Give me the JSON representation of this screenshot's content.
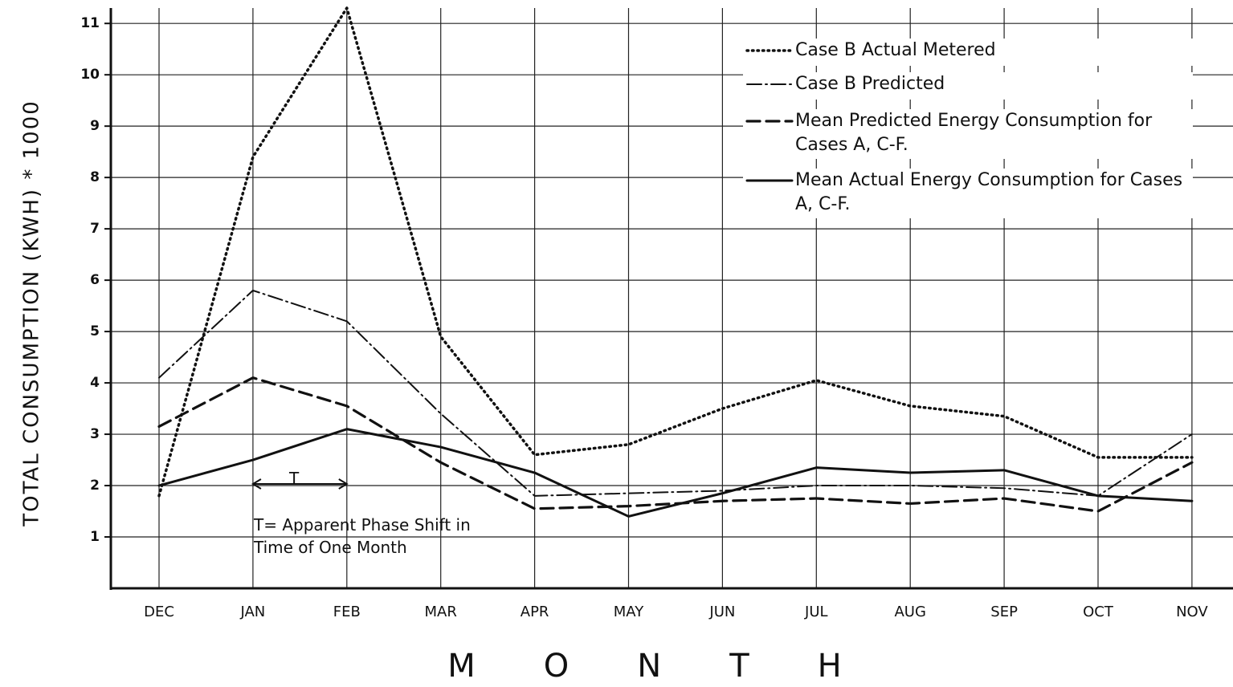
{
  "chart_data": {
    "type": "line",
    "y_label": "TOTAL CONSUMPTION (KWH) * 1000",
    "x_label": "MONTH",
    "categories": [
      "DEC",
      "JAN",
      "FEB",
      "MAR",
      "APR",
      "MAY",
      "JUN",
      "JUL",
      "AUG",
      "SEP",
      "OCT",
      "NOV"
    ],
    "series": [
      {
        "name": "Case B Actual Metered",
        "color": "#111111",
        "style": "dotted",
        "values": [
          1.8,
          8.4,
          11.3,
          4.9,
          2.6,
          2.8,
          3.5,
          4.05,
          3.55,
          3.35,
          2.55,
          2.55
        ]
      },
      {
        "name": "Case B Predicted",
        "color": "#111111",
        "style": "dash-dot",
        "values": [
          4.1,
          5.8,
          5.2,
          3.4,
          1.8,
          1.85,
          1.9,
          2.0,
          2.0,
          1.95,
          1.8,
          3.0
        ]
      },
      {
        "name": "Mean Predicted Energy Consumption for Cases A, C-F.",
        "color": "#111111",
        "style": "dashed",
        "values": [
          3.15,
          4.1,
          3.55,
          2.45,
          1.55,
          1.6,
          1.7,
          1.75,
          1.65,
          1.75,
          1.5,
          2.45
        ]
      },
      {
        "name": "Mean Actual Energy Consumption for Cases A, C-F.",
        "color": "#111111",
        "style": "solid",
        "values": [
          2.0,
          2.5,
          3.1,
          2.75,
          2.25,
          1.4,
          1.85,
          2.35,
          2.25,
          2.3,
          1.8,
          1.7
        ]
      }
    ],
    "ylim": [
      0,
      11.3
    ],
    "yticks": [
      1,
      2,
      3,
      4,
      5,
      6,
      7,
      8,
      9,
      10,
      11
    ],
    "grid": true,
    "legend": "upper right",
    "annotations": [
      "T",
      "T= Apparent Phase Shift in Time of One Month"
    ]
  }
}
